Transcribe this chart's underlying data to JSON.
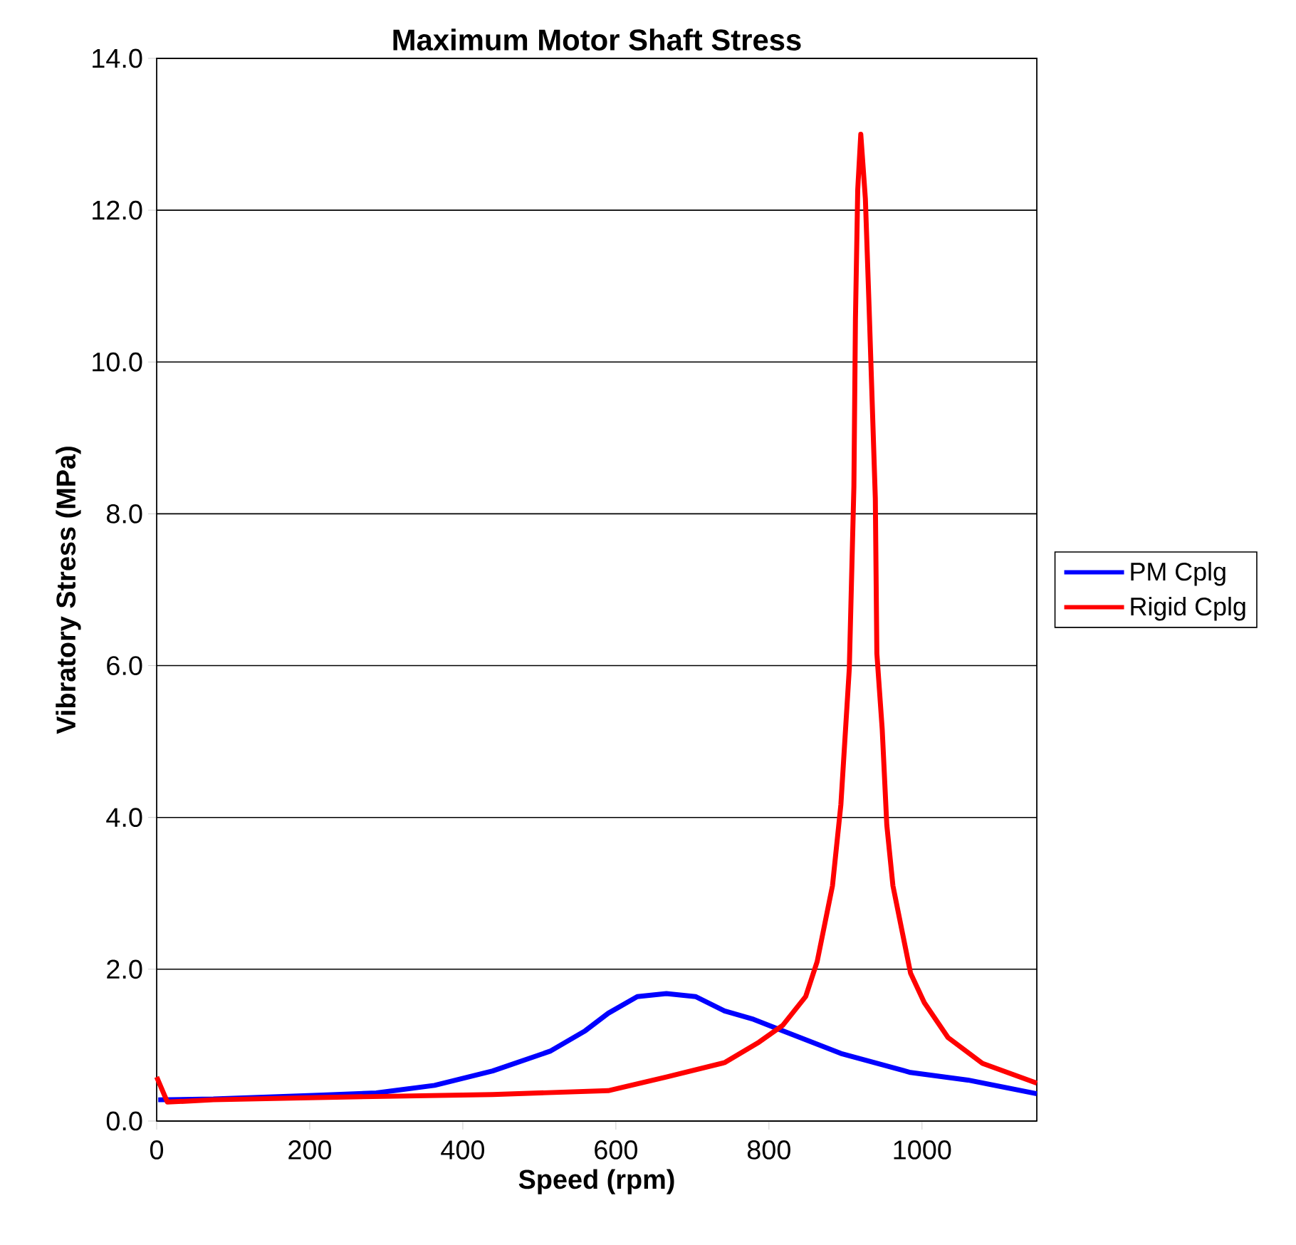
{
  "chart_data": {
    "type": "line",
    "title": "Maximum Motor Shaft Stress",
    "xlabel": "Speed (rpm)",
    "ylabel": "Vibratory Stress (MPa)",
    "xlim": [
      0,
      1150
    ],
    "ylim": [
      0,
      14
    ],
    "xticks": [
      0,
      200,
      400,
      600,
      800,
      1000
    ],
    "yticks": [
      {
        "value": 0,
        "label": "0.0"
      },
      {
        "value": 2,
        "label": "2.0"
      },
      {
        "value": 4,
        "label": "4.0"
      },
      {
        "value": 6,
        "label": "6.0"
      },
      {
        "value": 8,
        "label": "8.0"
      },
      {
        "value": 10,
        "label": "10.0"
      },
      {
        "value": 12,
        "label": "12.0"
      },
      {
        "value": 14,
        "label": "14.0"
      }
    ],
    "grid": "y",
    "legend": "right",
    "marker": "none",
    "line_style": "solid",
    "series": [
      {
        "name": "PM Cplg",
        "color": "#0000ff",
        "x": [
          2,
          74,
          211,
          287,
          363,
          439,
          514,
          560,
          590,
          628,
          666,
          704,
          742,
          780,
          818,
          894,
          985,
          1060,
          1150
        ],
        "values": [
          0.28,
          0.29,
          0.34,
          0.37,
          0.47,
          0.66,
          0.92,
          1.19,
          1.42,
          1.64,
          1.68,
          1.64,
          1.45,
          1.34,
          1.19,
          0.89,
          0.64,
          0.54,
          0.36
        ]
      },
      {
        "name": "Rigid Cplg",
        "color": "#ff0000",
        "x": [
          0,
          14,
          74,
          211,
          439,
          590,
          666,
          742,
          787,
          818,
          848,
          863,
          883,
          894,
          905,
          911,
          913,
          916,
          920,
          926,
          931,
          939,
          941,
          948,
          954,
          962,
          985,
          1003,
          1034,
          1079,
          1150
        ],
        "values": [
          0.58,
          0.25,
          0.28,
          0.31,
          0.35,
          0.4,
          0.58,
          0.77,
          1.04,
          1.26,
          1.64,
          2.1,
          3.1,
          4.17,
          5.96,
          8.36,
          10.55,
          12.27,
          13.0,
          12.15,
          10.68,
          8.2,
          6.16,
          5.16,
          3.9,
          3.1,
          1.95,
          1.56,
          1.1,
          0.76,
          0.5
        ]
      }
    ]
  }
}
